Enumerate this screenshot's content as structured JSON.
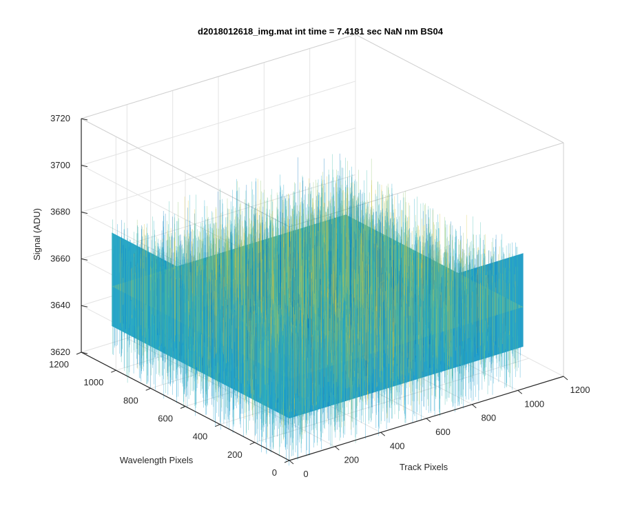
{
  "chart_data": {
    "type": "surface",
    "title": "d2018012618_img.mat int time = 7.4181 sec  NaN nm BS04",
    "xlabel": "Track Pixels",
    "ylabel": "Wavelength Pixels",
    "zlabel": "Signal (ADU)",
    "xlim": [
      0,
      1200
    ],
    "ylim": [
      0,
      1200
    ],
    "zlim": [
      3620,
      3720
    ],
    "x_ticks": [
      0,
      200,
      400,
      600,
      800,
      1000,
      1200
    ],
    "y_ticks": [
      0,
      200,
      400,
      600,
      800,
      1000,
      1200
    ],
    "z_ticks": [
      3620,
      3640,
      3660,
      3680,
      3700,
      3720
    ],
    "x_tick_labels": [
      "0",
      "200",
      "400",
      "600",
      "800",
      "1000",
      "1200"
    ],
    "y_tick_labels": [
      "0",
      "200",
      "400",
      "600",
      "800",
      "1000",
      "1200"
    ],
    "z_tick_labels": [
      "3620",
      "3640",
      "3660",
      "3680",
      "3700",
      "3720"
    ],
    "data_extent": {
      "x": [
        0,
        1024
      ],
      "y": [
        0,
        1024
      ]
    },
    "signal_mean": 3655,
    "signal_noise_range": [
      3630,
      3690
    ],
    "grid": true,
    "box": true,
    "colormap": [
      "#0072bd",
      "#1aa6c8",
      "#3dbbab",
      "#8cc36b",
      "#d9c43c"
    ]
  }
}
